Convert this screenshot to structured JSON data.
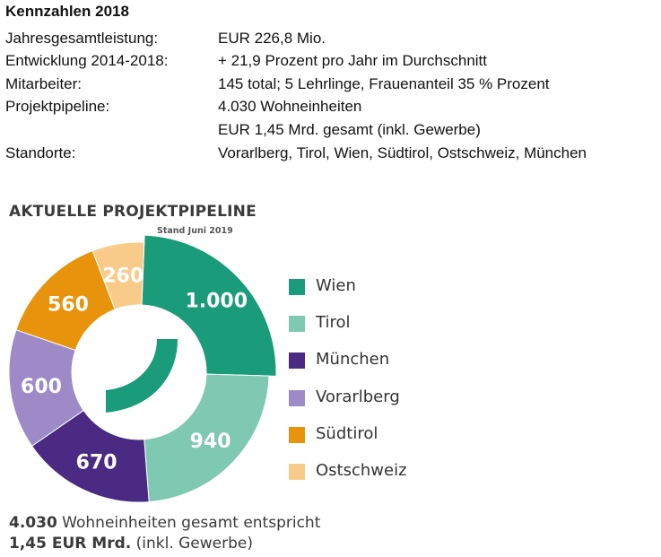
{
  "kennzahlen": {
    "title": "Kennzahlen 2018",
    "rows": [
      {
        "label": "Jahresgesamtleistung:",
        "value": "EUR 226,8 Mio."
      },
      {
        "label": "Entwicklung 2014-2018:",
        "value": "+ 21,9 Prozent pro Jahr im Durchschnitt"
      },
      {
        "label": "Mitarbeiter:",
        "value": "145 total; 5 Lehrlinge, Frauenanteil 35 % Prozent"
      },
      {
        "label": "Projektpipeline:",
        "value": "4.030 Wohneinheiten"
      },
      {
        "label": "",
        "value": "EUR 1,45 Mrd. gesamt (inkl. Gewerbe)"
      },
      {
        "label": "Standorte:",
        "value": "Vorarlberg, Tirol, Wien, Südtirol, Ostschweiz, München"
      }
    ]
  },
  "chart_data": {
    "type": "pie",
    "variant": "donut",
    "title": "AKTUELLE PROJEKTPIPELINE",
    "subtitle": "Stand Juni 2019",
    "legend_position": "right",
    "slices": [
      {
        "label": "Wien",
        "value": 1000,
        "display": "1.000",
        "color": "#1a9b7a",
        "label_color": "#ffffff"
      },
      {
        "label": "Tirol",
        "value": 940,
        "display": "940",
        "color": "#7fc8b1",
        "label_color": "#ffffff"
      },
      {
        "label": "München",
        "value": 670,
        "display": "670",
        "color": "#4a2a82",
        "label_color": "#ffffff"
      },
      {
        "label": "Vorarlberg",
        "value": 600,
        "display": "600",
        "color": "#9d8ac6",
        "label_color": "#ffffff"
      },
      {
        "label": "Südtirol",
        "value": 560,
        "display": "560",
        "color": "#e8930c",
        "label_color": "#ffffff"
      },
      {
        "label": "Ostschweiz",
        "value": 260,
        "display": "260",
        "color": "#f8cb8a",
        "label_color": "#ffffff"
      }
    ],
    "total": 4030
  },
  "logo": {
    "color": "#1a9b7a"
  },
  "footer": {
    "line1_bold": "4.030",
    "line1_rest": " Wohneinheiten gesamt entspricht",
    "line2_bold": "1,45 EUR Mrd.",
    "line2_rest": " (inkl. Gewerbe)"
  }
}
